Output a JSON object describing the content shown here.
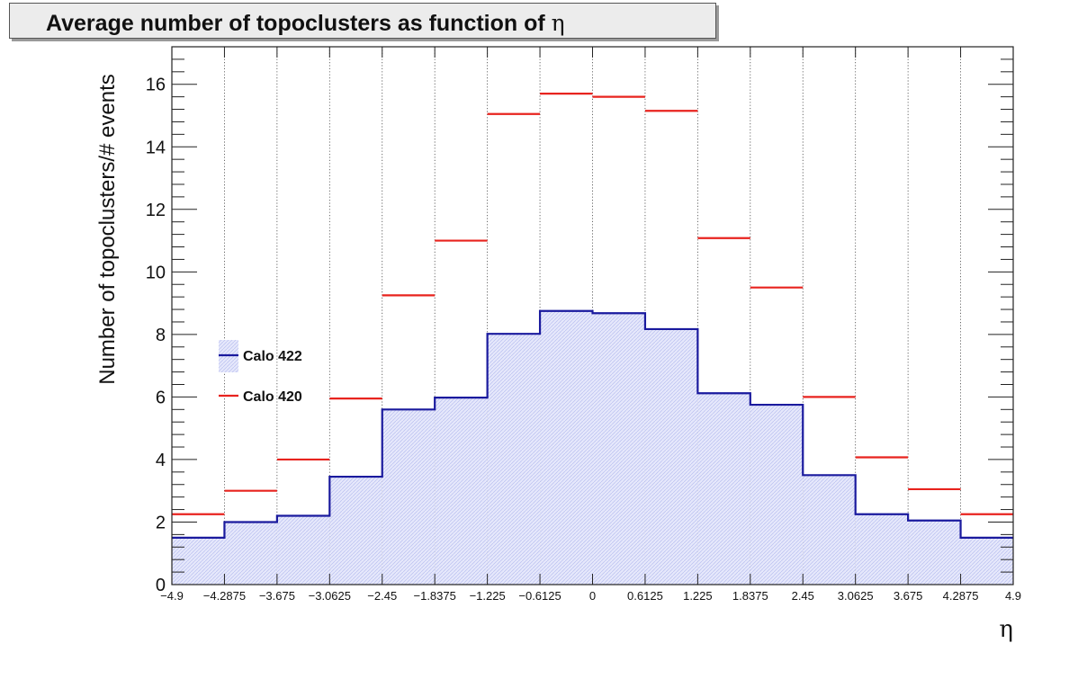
{
  "chart_data": {
    "type": "bar",
    "title": "Average number of topoclusters as function of",
    "title_symbol": "η",
    "xlabel": "η",
    "ylabel": "Number of topoclusters/# events",
    "xlim": [
      -4.9,
      4.9
    ],
    "ylim": [
      0,
      17.2
    ],
    "x_edges": [
      -4.9,
      -4.2875,
      -3.675,
      -3.0625,
      -2.45,
      -1.8375,
      -1.225,
      -0.6125,
      0,
      0.6125,
      1.225,
      1.8375,
      2.45,
      3.0625,
      3.675,
      4.2875,
      4.9
    ],
    "x_tick_labels": [
      "−4.9",
      "−4.2875",
      "−3.675",
      "−3.0625",
      "−2.45",
      "−1.8375",
      "−1.225",
      "−0.6125",
      "0",
      "0.6125",
      "1.225",
      "1.8375",
      "2.45",
      "3.0625",
      "3.675",
      "4.2875",
      "4.9"
    ],
    "y_ticks": [
      0,
      2,
      4,
      6,
      8,
      10,
      12,
      14,
      16
    ],
    "y_tick_labels": [
      "0",
      "2",
      "4",
      "6",
      "8",
      "10",
      "12",
      "14",
      "16"
    ],
    "grid": "vertical dotted",
    "legend_position": "left-middle",
    "series": [
      {
        "name": "Calo 422",
        "style": "step-filled-hatched",
        "color": "#1a1a9e",
        "fill_color": "#d8dcf8",
        "values": [
          1.5,
          2.0,
          2.2,
          3.45,
          5.6,
          5.98,
          8.02,
          8.75,
          8.68,
          8.17,
          6.12,
          5.75,
          3.5,
          2.25,
          2.05,
          1.5
        ]
      },
      {
        "name": "Calo 420",
        "style": "horizontal-markers",
        "color": "#e8231e",
        "values": [
          2.25,
          3.0,
          4.0,
          5.95,
          9.25,
          11.0,
          15.05,
          15.7,
          15.6,
          15.15,
          11.08,
          9.5,
          6.0,
          4.07,
          3.05,
          2.25
        ]
      }
    ]
  }
}
